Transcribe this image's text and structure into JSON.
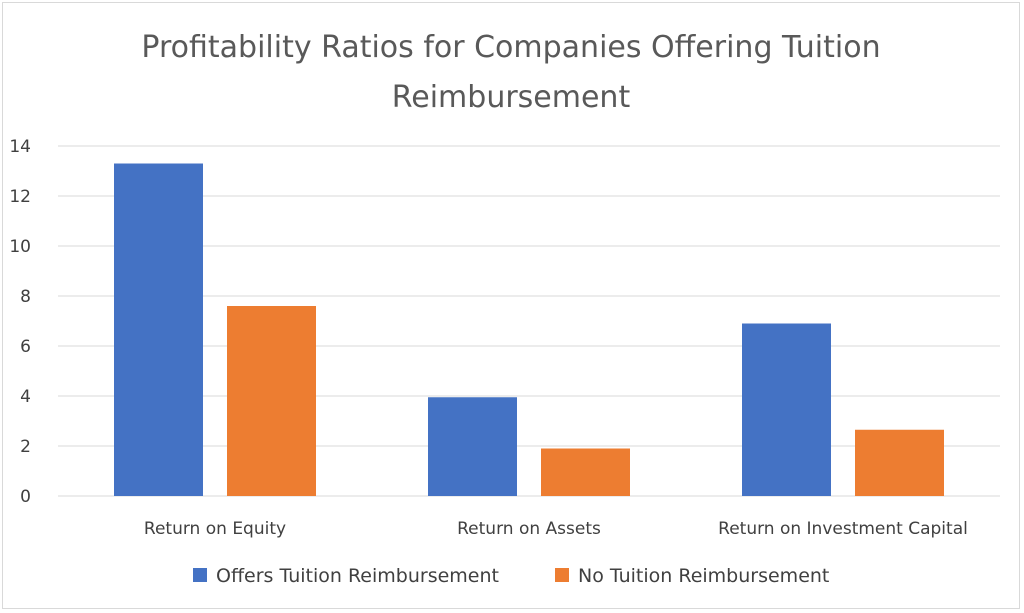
{
  "chart_data": {
    "type": "bar",
    "title_lines": [
      "Profitability Ratios for Companies Offering Tuition",
      "Reimbursement"
    ],
    "categories": [
      "Return on Equity",
      "Return on Assets",
      "Return on Investment Capital"
    ],
    "series": [
      {
        "name": "Offers Tuition Reimbursement",
        "color": "#4472c4",
        "values": [
          13.3,
          3.95,
          6.9
        ]
      },
      {
        "name": "No Tuition Reimbursement",
        "color": "#ed7d31",
        "values": [
          7.6,
          1.9,
          2.65
        ]
      }
    ],
    "ylim": [
      0,
      14
    ],
    "yticks": [
      "0",
      "2",
      "4",
      "6",
      "8",
      "10",
      "12",
      "14"
    ],
    "grid": true,
    "legend_position": "bottom"
  }
}
